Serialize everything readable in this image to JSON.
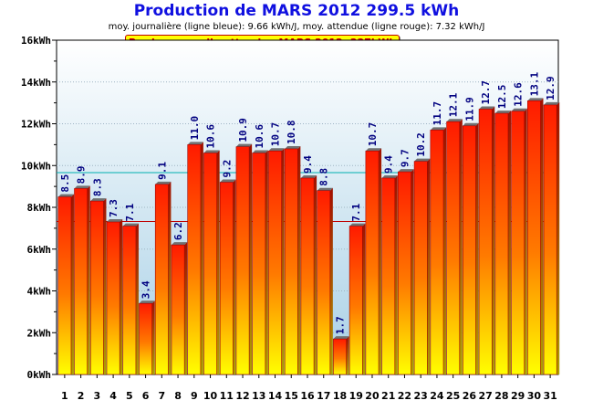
{
  "chart_data": {
    "type": "bar",
    "title": "Production de MARS 2012  299.5 kWh",
    "subtitle": "moy. journalière (ligne bleue): 9.66 kWh/J,  moy. attendue (ligne rouge): 7.32 kWh/J",
    "annotation": "Prod. mensuelle attendue MARS 2012: 227kWh",
    "categories": [
      "1",
      "2",
      "3",
      "4",
      "5",
      "6",
      "7",
      "8",
      "9",
      "10",
      "11",
      "12",
      "13",
      "14",
      "15",
      "16",
      "17",
      "18",
      "19",
      "20",
      "21",
      "22",
      "23",
      "24",
      "25",
      "26",
      "27",
      "28",
      "29",
      "30",
      "31"
    ],
    "values": [
      8.5,
      8.9,
      8.3,
      7.3,
      7.1,
      3.4,
      9.1,
      6.2,
      11.0,
      10.6,
      9.2,
      10.9,
      10.6,
      10.7,
      10.8,
      9.4,
      8.8,
      1.7,
      7.1,
      10.7,
      9.4,
      9.7,
      10.2,
      11.7,
      12.1,
      11.9,
      12.7,
      12.5,
      12.6,
      13.1,
      12.9
    ],
    "value_labels": [
      "8.5",
      "8.9",
      "8.3",
      "7.3",
      "7.1",
      "3.4",
      "9.1",
      "6.2",
      "11.0",
      "10.6",
      "9.2",
      "10.9",
      "10.6",
      "10.7",
      "10.8",
      "9.4",
      "8.8",
      "1.7",
      "7.1",
      "10.7",
      "9.4",
      "9.7",
      "10.2",
      "11.7",
      "12.1",
      "11.9",
      "12.7",
      "12.5",
      "12.6",
      "13.1",
      "12.9"
    ],
    "ylim": [
      0,
      16
    ],
    "yticks": [
      0,
      2,
      4,
      6,
      8,
      10,
      12,
      14,
      16
    ],
    "ytick_labels": [
      "0kWh",
      "2kWh",
      "4kWh",
      "6kWh",
      "8kWh",
      "10kWh",
      "12kWh",
      "14kWh",
      "16kWh"
    ],
    "reference_lines": [
      {
        "value": 9.66,
        "color": "#00b0b0"
      },
      {
        "value": 7.32,
        "color": "#c00000"
      }
    ],
    "grid": true,
    "colors": {
      "bar_top": "#ff1a00",
      "bar_bottom": "#ffff00",
      "bar_label": "#000080",
      "bg_top": "#ffffff",
      "bg_bottom": "#a8d0e6"
    }
  }
}
